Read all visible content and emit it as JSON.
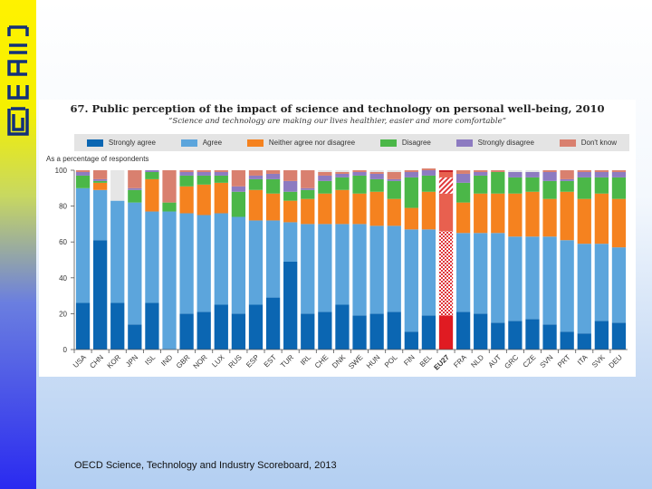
{
  "logo_text": "CERIS",
  "footer": "OECD Science, Technology and  Industry Scoreboard, 2013",
  "chart_data": {
    "type": "bar",
    "stacked": true,
    "title": "67.  Public perception of the impact of science and technology on personal well-being, 2010",
    "subtitle": "“Science and technology are making our lives healthier, easier and more comfortable”",
    "ylabel": "As a percentage of respondents",
    "ylim": [
      0,
      100
    ],
    "yticks": [
      0,
      20,
      40,
      60,
      80,
      100
    ],
    "legend_placement": "top",
    "highlight_category": "EU27",
    "categories": [
      "USA",
      "CHN",
      "KOR",
      "JPN",
      "ISL",
      "IND",
      "GBR",
      "NOR",
      "LUX",
      "RUS",
      "ESP",
      "EST",
      "TUR",
      "IRL",
      "CHE",
      "DNK",
      "SWE",
      "HUN",
      "POL",
      "FIN",
      "BEL",
      "EU27",
      "FRA",
      "NLD",
      "AUT",
      "GRC",
      "CZE",
      "SVN",
      "PRT",
      "ITA",
      "SVK",
      "DEU"
    ],
    "series": [
      {
        "name": "Strongly agree",
        "color": "#0b66b2",
        "values": [
          26,
          61,
          26,
          14,
          26,
          0,
          20,
          21,
          25,
          20,
          25,
          29,
          49,
          20,
          21,
          25,
          19,
          20,
          21,
          10,
          19,
          19,
          21,
          20,
          15,
          16,
          17,
          14,
          10,
          9,
          16,
          15
        ]
      },
      {
        "name": "Agree",
        "color": "#5ca5dc",
        "values": [
          64,
          28,
          57,
          68,
          51,
          77,
          56,
          54,
          51,
          54,
          47,
          43,
          22,
          50,
          49,
          45,
          51,
          49,
          48,
          57,
          48,
          47,
          44,
          45,
          50,
          47,
          46,
          49,
          51,
          50,
          43,
          42
        ]
      },
      {
        "name": "Neither agree nor disagree",
        "color": "#f5821f",
        "values": [
          0,
          4,
          0,
          0,
          18,
          0,
          15,
          17,
          17,
          0,
          17,
          15,
          12,
          14,
          17,
          19,
          17,
          19,
          15,
          12,
          21,
          21,
          17,
          22,
          22,
          24,
          25,
          21,
          27,
          25,
          28,
          27
        ]
      },
      {
        "name": "Disagree",
        "color": "#4bb748",
        "values": [
          7,
          1,
          0,
          7,
          4,
          5,
          6,
          5,
          4,
          14,
          6,
          8,
          5,
          5,
          7,
          7,
          10,
          7,
          10,
          17,
          9,
          9,
          11,
          10,
          12,
          9,
          8,
          10,
          6,
          12,
          9,
          12
        ]
      },
      {
        "name": "Strongly disagree",
        "color": "#8d7bc1",
        "values": [
          2,
          1,
          0,
          1,
          1,
          0,
          2,
          2,
          2,
          3,
          2,
          3,
          6,
          1,
          3,
          2,
          2,
          3,
          1,
          3,
          3,
          3,
          5,
          2,
          0,
          3,
          3,
          5,
          1,
          3,
          3,
          3
        ]
      },
      {
        "name": "Don't know",
        "color": "#d9806f",
        "values": [
          1,
          5,
          0,
          10,
          0,
          18,
          1,
          1,
          1,
          9,
          3,
          2,
          6,
          10,
          2,
          1,
          1,
          1,
          4,
          1,
          1,
          1,
          2,
          1,
          1,
          0,
          0,
          1,
          5,
          1,
          1,
          1
        ]
      }
    ]
  }
}
